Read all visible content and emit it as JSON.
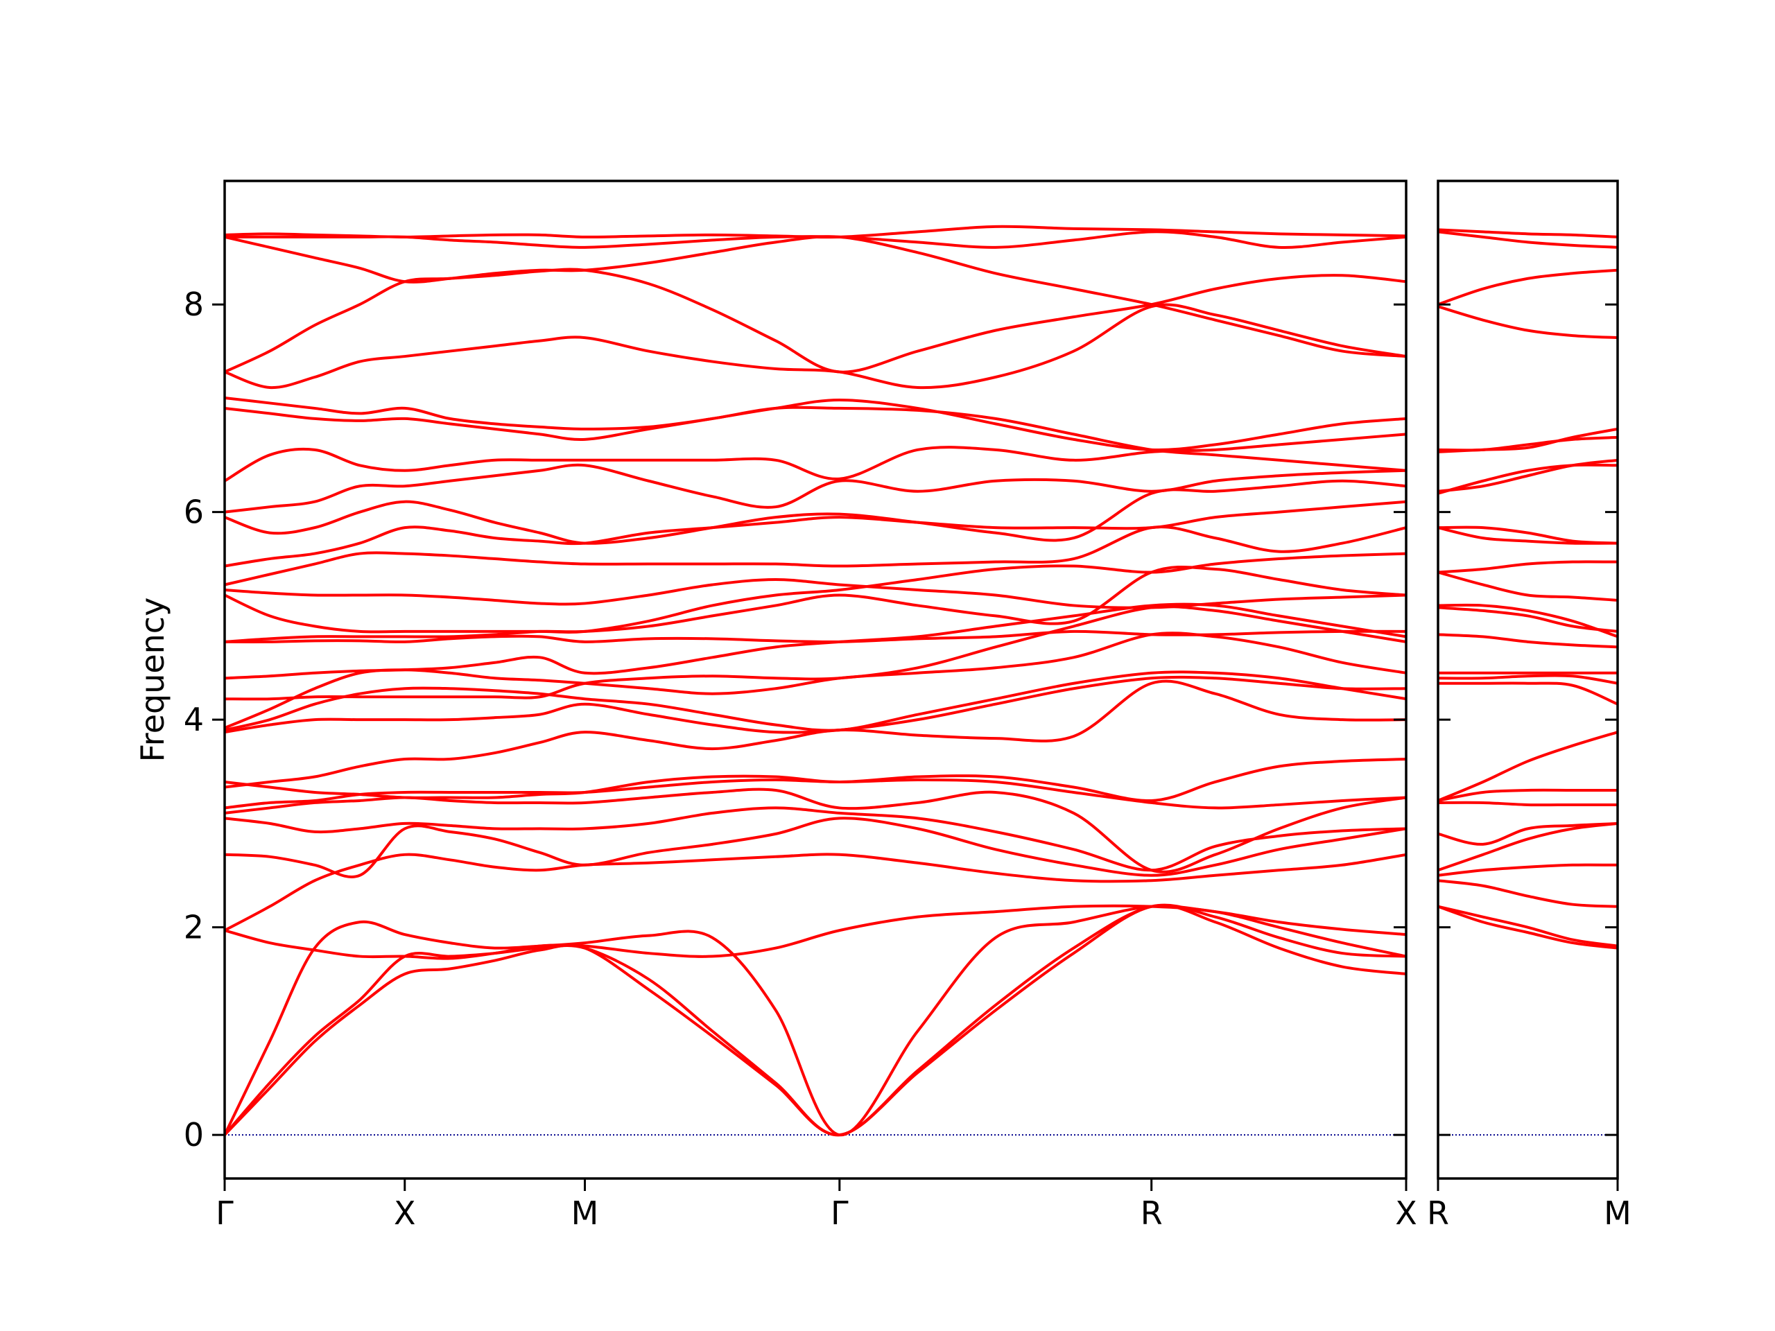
{
  "chart_data": [
    {
      "type": "line",
      "ylabel": "Frequency",
      "color": "#ff0000",
      "xlim": [
        0,
        3.28
      ],
      "ylim": [
        -0.42,
        9.19
      ],
      "xticks": [
        {
          "value": 0,
          "label": "Γ"
        },
        {
          "value": 0.5,
          "label": "X"
        },
        {
          "value": 1.0,
          "label": "M"
        },
        {
          "value": 1.707,
          "label": "Γ"
        },
        {
          "value": 2.573,
          "label": "R"
        },
        {
          "value": 3.28,
          "label": "X"
        }
      ],
      "yticks": [
        0,
        2,
        4,
        6,
        8
      ],
      "show_ytick_labels": true,
      "hline": {
        "value": 0,
        "color": "#00008b"
      },
      "x": [
        0,
        0.125,
        0.25,
        0.375,
        0.5,
        0.625,
        0.75,
        0.875,
        1.0,
        1.177,
        1.354,
        1.53,
        1.707,
        1.924,
        2.14,
        2.357,
        2.573,
        2.75,
        2.927,
        3.103,
        3.28
      ],
      "series": [
        {
          "values": [
            0,
            0.45,
            0.9,
            1.25,
            1.55,
            1.6,
            1.68,
            1.78,
            1.8,
            1.4,
            0.95,
            0.48,
            0,
            0.6,
            1.2,
            1.75,
            2.2,
            2.05,
            1.8,
            1.62,
            1.55
          ]
        },
        {
          "values": [
            0,
            0.5,
            0.95,
            1.3,
            1.72,
            1.72,
            1.75,
            1.8,
            1.8,
            1.5,
            1.0,
            0.5,
            0,
            0.62,
            1.25,
            1.8,
            2.2,
            2.1,
            1.9,
            1.75,
            1.72
          ]
        },
        {
          "values": [
            0,
            0.9,
            1.8,
            2.05,
            1.93,
            1.85,
            1.8,
            1.82,
            1.85,
            1.92,
            1.9,
            1.2,
            0,
            1.0,
            1.9,
            2.05,
            2.2,
            2.15,
            2.05,
            1.98,
            1.93
          ]
        },
        {
          "values": [
            1.97,
            1.85,
            1.78,
            1.72,
            1.72,
            1.7,
            1.75,
            1.82,
            1.82,
            1.75,
            1.72,
            1.8,
            1.97,
            2.1,
            2.15,
            2.2,
            2.2,
            2.15,
            2.0,
            1.85,
            1.72
          ]
        },
        {
          "values": [
            1.97,
            2.2,
            2.45,
            2.6,
            2.7,
            2.65,
            2.58,
            2.55,
            2.6,
            2.62,
            2.65,
            2.68,
            2.7,
            2.62,
            2.52,
            2.45,
            2.45,
            2.5,
            2.55,
            2.6,
            2.7
          ]
        },
        {
          "values": [
            2.7,
            2.68,
            2.6,
            2.5,
            2.95,
            2.92,
            2.85,
            2.72,
            2.6,
            2.72,
            2.8,
            2.9,
            3.05,
            2.95,
            2.75,
            2.6,
            2.5,
            2.6,
            2.75,
            2.85,
            2.95
          ]
        },
        {
          "values": [
            3.05,
            3.0,
            2.92,
            2.95,
            3.0,
            2.98,
            2.95,
            2.95,
            2.95,
            3.0,
            3.1,
            3.15,
            3.1,
            3.05,
            2.92,
            2.75,
            2.55,
            2.78,
            2.88,
            2.93,
            2.95
          ]
        },
        {
          "values": [
            3.1,
            3.15,
            3.2,
            3.22,
            3.25,
            3.22,
            3.2,
            3.2,
            3.2,
            3.25,
            3.3,
            3.32,
            3.15,
            3.2,
            3.3,
            3.1,
            2.55,
            2.7,
            2.95,
            3.15,
            3.25
          ]
        },
        {
          "values": [
            3.15,
            3.2,
            3.22,
            3.28,
            3.3,
            3.3,
            3.3,
            3.3,
            3.3,
            3.35,
            3.4,
            3.42,
            3.4,
            3.42,
            3.4,
            3.3,
            3.2,
            3.15,
            3.18,
            3.22,
            3.25
          ]
        },
        {
          "values": [
            3.35,
            3.4,
            3.45,
            3.55,
            3.62,
            3.62,
            3.68,
            3.78,
            3.88,
            3.8,
            3.72,
            3.8,
            3.9,
            3.85,
            3.82,
            3.84,
            4.35,
            4.25,
            4.05,
            4.0,
            4.0
          ]
        },
        {
          "values": [
            3.4,
            3.35,
            3.3,
            3.28,
            3.25,
            3.25,
            3.25,
            3.28,
            3.3,
            3.4,
            3.45,
            3.45,
            3.4,
            3.45,
            3.45,
            3.35,
            3.22,
            3.4,
            3.55,
            3.6,
            3.62
          ]
        },
        {
          "values": [
            3.88,
            3.95,
            4.0,
            4.0,
            4.0,
            4.0,
            4.02,
            4.05,
            4.15,
            4.05,
            3.95,
            3.88,
            3.9,
            4.0,
            4.15,
            4.3,
            4.4,
            4.4,
            4.35,
            4.3,
            4.3
          ]
        },
        {
          "values": [
            3.9,
            4.0,
            4.15,
            4.25,
            4.3,
            4.3,
            4.28,
            4.25,
            4.2,
            4.15,
            4.05,
            3.95,
            3.9,
            4.05,
            4.2,
            4.35,
            4.45,
            4.45,
            4.4,
            4.3,
            4.2
          ]
        },
        {
          "values": [
            3.92,
            4.1,
            4.3,
            4.45,
            4.48,
            4.45,
            4.4,
            4.38,
            4.35,
            4.3,
            4.25,
            4.3,
            4.4,
            4.45,
            4.5,
            4.6,
            4.82,
            4.8,
            4.7,
            4.55,
            4.45
          ]
        },
        {
          "values": [
            4.2,
            4.2,
            4.22,
            4.22,
            4.22,
            4.22,
            4.22,
            4.22,
            4.35,
            4.4,
            4.42,
            4.4,
            4.4,
            4.5,
            4.7,
            4.9,
            5.08,
            5.05,
            4.95,
            4.85,
            4.75
          ]
        },
        {
          "values": [
            4.4,
            4.42,
            4.45,
            4.47,
            4.48,
            4.5,
            4.55,
            4.6,
            4.45,
            4.5,
            4.6,
            4.7,
            4.75,
            4.8,
            4.9,
            5.0,
            5.1,
            5.1,
            5.0,
            4.9,
            4.8
          ]
        },
        {
          "values": [
            4.75,
            4.75,
            4.76,
            4.76,
            4.75,
            4.78,
            4.8,
            4.8,
            4.75,
            4.78,
            4.78,
            4.76,
            4.75,
            4.78,
            4.8,
            4.85,
            4.82,
            4.82,
            4.84,
            4.85,
            4.85
          ]
        },
        {
          "values": [
            4.75,
            4.78,
            4.8,
            4.8,
            4.8,
            4.8,
            4.82,
            4.85,
            4.85,
            4.9,
            5.0,
            5.1,
            5.2,
            5.1,
            5.0,
            4.95,
            5.42,
            5.45,
            5.35,
            5.25,
            5.2
          ]
        },
        {
          "values": [
            5.2,
            5.0,
            4.9,
            4.85,
            4.85,
            4.85,
            4.85,
            4.85,
            4.85,
            4.95,
            5.1,
            5.2,
            5.25,
            5.35,
            5.45,
            5.48,
            5.42,
            5.5,
            5.55,
            5.58,
            5.6
          ]
        },
        {
          "values": [
            5.25,
            5.22,
            5.2,
            5.2,
            5.2,
            5.18,
            5.15,
            5.12,
            5.12,
            5.2,
            5.3,
            5.35,
            5.3,
            5.25,
            5.2,
            5.1,
            5.08,
            5.12,
            5.16,
            5.18,
            5.2
          ]
        },
        {
          "values": [
            5.3,
            5.4,
            5.5,
            5.6,
            5.6,
            5.58,
            5.55,
            5.52,
            5.5,
            5.5,
            5.5,
            5.5,
            5.48,
            5.5,
            5.52,
            5.55,
            5.85,
            5.75,
            5.62,
            5.7,
            5.85
          ]
        },
        {
          "values": [
            5.48,
            5.55,
            5.6,
            5.7,
            5.85,
            5.82,
            5.75,
            5.72,
            5.7,
            5.8,
            5.85,
            5.9,
            5.95,
            5.9,
            5.85,
            5.85,
            5.85,
            5.95,
            6.0,
            6.05,
            6.1
          ]
        },
        {
          "values": [
            5.95,
            5.8,
            5.85,
            6.0,
            6.1,
            6.02,
            5.9,
            5.8,
            5.7,
            5.75,
            5.85,
            5.95,
            5.98,
            5.9,
            5.8,
            5.75,
            6.18,
            6.2,
            6.25,
            6.3,
            6.25
          ]
        },
        {
          "values": [
            6.0,
            6.05,
            6.1,
            6.25,
            6.25,
            6.3,
            6.35,
            6.4,
            6.45,
            6.3,
            6.15,
            6.05,
            6.3,
            6.2,
            6.3,
            6.3,
            6.2,
            6.3,
            6.35,
            6.38,
            6.4
          ]
        },
        {
          "values": [
            6.3,
            6.55,
            6.6,
            6.45,
            6.4,
            6.45,
            6.5,
            6.5,
            6.5,
            6.5,
            6.5,
            6.5,
            6.32,
            6.6,
            6.6,
            6.5,
            6.58,
            6.6,
            6.65,
            6.7,
            6.75
          ]
        },
        {
          "values": [
            7.0,
            6.95,
            6.9,
            6.88,
            6.9,
            6.85,
            6.8,
            6.75,
            6.7,
            6.8,
            6.9,
            7.0,
            7.08,
            7.0,
            6.85,
            6.7,
            6.6,
            6.65,
            6.75,
            6.85,
            6.9
          ]
        },
        {
          "values": [
            7.1,
            7.05,
            7.0,
            6.95,
            7.0,
            6.9,
            6.85,
            6.82,
            6.8,
            6.82,
            6.9,
            7.0,
            7.0,
            6.98,
            6.9,
            6.75,
            6.6,
            6.55,
            6.5,
            6.45,
            6.4
          ]
        },
        {
          "values": [
            7.35,
            7.2,
            7.3,
            7.45,
            7.5,
            7.55,
            7.6,
            7.65,
            7.68,
            7.55,
            7.45,
            7.38,
            7.35,
            7.2,
            7.3,
            7.55,
            7.98,
            7.9,
            7.75,
            7.6,
            7.5
          ]
        },
        {
          "values": [
            7.35,
            7.55,
            7.8,
            8.0,
            8.22,
            8.25,
            8.28,
            8.32,
            8.33,
            8.2,
            7.95,
            7.65,
            7.35,
            7.55,
            7.75,
            7.88,
            8.0,
            8.15,
            8.25,
            8.28,
            8.22
          ]
        },
        {
          "values": [
            8.65,
            8.55,
            8.45,
            8.35,
            8.22,
            8.25,
            8.3,
            8.33,
            8.33,
            8.4,
            8.5,
            8.6,
            8.65,
            8.5,
            8.3,
            8.15,
            8.0,
            7.85,
            7.7,
            7.55,
            7.5
          ]
        },
        {
          "values": [
            8.65,
            8.65,
            8.65,
            8.65,
            8.65,
            8.62,
            8.6,
            8.57,
            8.55,
            8.58,
            8.62,
            8.65,
            8.65,
            8.6,
            8.55,
            8.62,
            8.7,
            8.65,
            8.55,
            8.6,
            8.65
          ]
        },
        {
          "values": [
            8.67,
            8.68,
            8.67,
            8.66,
            8.65,
            8.66,
            8.67,
            8.67,
            8.65,
            8.66,
            8.67,
            8.66,
            8.65,
            8.7,
            8.75,
            8.73,
            8.72,
            8.7,
            8.68,
            8.67,
            8.66
          ]
        }
      ]
    },
    {
      "type": "line",
      "color": "#ff0000",
      "xlim": [
        0,
        0.5
      ],
      "ylim": [
        -0.42,
        9.19
      ],
      "xticks": [
        {
          "value": 0,
          "label": "R"
        },
        {
          "value": 0.5,
          "label": "M"
        }
      ],
      "yticks": [
        0,
        2,
        4,
        6,
        8
      ],
      "show_ytick_labels": false,
      "hline": {
        "value": 0,
        "color": "#00008b"
      },
      "x": [
        0,
        0.125,
        0.25,
        0.375,
        0.5
      ],
      "series": [
        {
          "values": [
            2.2,
            2.05,
            1.95,
            1.85,
            1.8
          ]
        },
        {
          "values": [
            2.2,
            2.1,
            2.0,
            1.88,
            1.82
          ]
        },
        {
          "values": [
            2.45,
            2.4,
            2.3,
            2.22,
            2.2
          ]
        },
        {
          "values": [
            2.5,
            2.55,
            2.58,
            2.6,
            2.6
          ]
        },
        {
          "values": [
            2.55,
            2.7,
            2.85,
            2.95,
            3.0
          ]
        },
        {
          "values": [
            2.9,
            2.8,
            2.95,
            2.98,
            3.0
          ]
        },
        {
          "values": [
            3.2,
            3.2,
            3.18,
            3.18,
            3.18
          ]
        },
        {
          "values": [
            3.22,
            3.4,
            3.6,
            3.75,
            3.88
          ]
        },
        {
          "values": [
            3.22,
            3.3,
            3.32,
            3.32,
            3.32
          ]
        },
        {
          "values": [
            4.35,
            4.35,
            4.35,
            4.33,
            4.15
          ]
        },
        {
          "values": [
            4.4,
            4.4,
            4.42,
            4.42,
            4.35
          ]
        },
        {
          "values": [
            4.45,
            4.45,
            4.45,
            4.45,
            4.45
          ]
        },
        {
          "values": [
            4.82,
            4.8,
            4.75,
            4.72,
            4.7
          ]
        },
        {
          "values": [
            5.08,
            5.05,
            5.0,
            4.9,
            4.85
          ]
        },
        {
          "values": [
            5.1,
            5.1,
            5.05,
            4.95,
            4.8
          ]
        },
        {
          "values": [
            5.42,
            5.45,
            5.5,
            5.52,
            5.52
          ]
        },
        {
          "values": [
            5.42,
            5.3,
            5.2,
            5.18,
            5.15
          ]
        },
        {
          "values": [
            5.85,
            5.85,
            5.8,
            5.72,
            5.7
          ]
        },
        {
          "values": [
            5.85,
            5.75,
            5.72,
            5.7,
            5.7
          ]
        },
        {
          "values": [
            6.18,
            6.3,
            6.4,
            6.45,
            6.45
          ]
        },
        {
          "values": [
            6.2,
            6.25,
            6.35,
            6.45,
            6.5
          ]
        },
        {
          "values": [
            6.58,
            6.6,
            6.62,
            6.72,
            6.8
          ]
        },
        {
          "values": [
            6.6,
            6.6,
            6.65,
            6.7,
            6.72
          ]
        },
        {
          "values": [
            7.98,
            7.85,
            7.75,
            7.7,
            7.68
          ]
        },
        {
          "values": [
            8.0,
            8.15,
            8.25,
            8.3,
            8.33
          ]
        },
        {
          "values": [
            8.7,
            8.65,
            8.6,
            8.57,
            8.55
          ]
        },
        {
          "values": [
            8.72,
            8.7,
            8.68,
            8.67,
            8.65
          ]
        }
      ]
    }
  ]
}
